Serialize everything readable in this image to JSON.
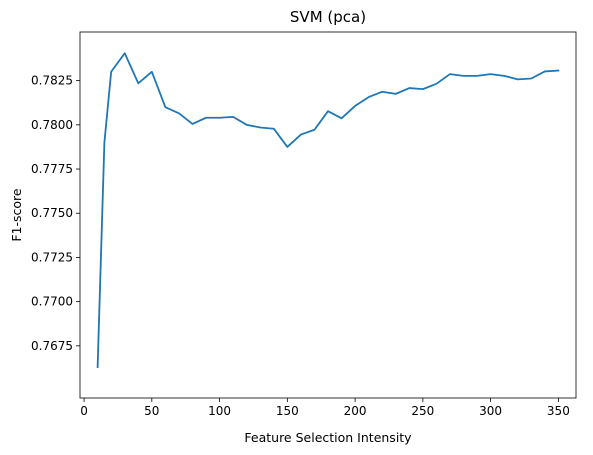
{
  "chart_data": {
    "type": "line",
    "title": "SVM (pca)",
    "xlabel": "Feature Selection Intensity",
    "ylabel": "F1-score",
    "xlim": [
      -3,
      363
    ],
    "ylim": [
      0.76455,
      0.78525
    ],
    "xticks": [
      0,
      50,
      100,
      150,
      200,
      250,
      300,
      350
    ],
    "yticks": [
      0.7675,
      0.77,
      0.7725,
      0.775,
      0.7775,
      0.78,
      0.7825
    ],
    "xtick_labels": [
      "0",
      "50",
      "100",
      "150",
      "200",
      "250",
      "300",
      "350"
    ],
    "ytick_labels": [
      "0.7675",
      "0.7700",
      "0.7725",
      "0.7750",
      "0.7775",
      "0.7800",
      "0.7825"
    ],
    "grid": false,
    "color": "#1f77b4",
    "series": [
      {
        "x": [
          10,
          15,
          20,
          30,
          40,
          50,
          60,
          70,
          80,
          90,
          100,
          110,
          120,
          130,
          140,
          150,
          160,
          170,
          180,
          190,
          200,
          210,
          220,
          230,
          240,
          250,
          260,
          270,
          280,
          290,
          300,
          310,
          320,
          330,
          340,
          350
        ],
        "values": [
          0.7663,
          0.779,
          0.783,
          0.78405,
          0.78235,
          0.783,
          0.781,
          0.78065,
          0.78005,
          0.7804,
          0.7804,
          0.78045,
          0.78,
          0.77985,
          0.77978,
          0.77875,
          0.77945,
          0.77972,
          0.78077,
          0.78037,
          0.78107,
          0.78157,
          0.78187,
          0.78175,
          0.78208,
          0.78202,
          0.78232,
          0.78287,
          0.78277,
          0.78277,
          0.78287,
          0.78277,
          0.78257,
          0.78262,
          0.78302,
          0.78307
        ]
      }
    ]
  }
}
